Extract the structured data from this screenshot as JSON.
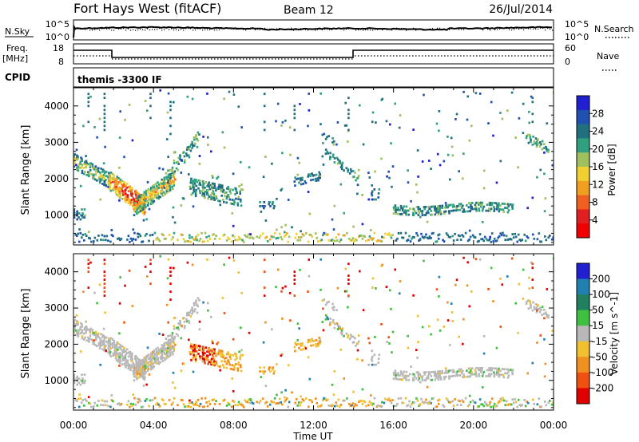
{
  "header": {
    "title": "Fort Hays West (fitACF)",
    "beam": "Beam 12",
    "date": "26/Jul/2014"
  },
  "top_panels": {
    "nsky_label": "N.Sky",
    "nsky_ticks": [
      "10^5",
      "10^0"
    ],
    "nsearch_label": "N.Search",
    "nsearch_ticks": [
      "10^5",
      "10^0"
    ],
    "freq_label": "Freq.",
    "freq_unit": "[MHz]",
    "freq_ticks": [
      "18",
      "8"
    ],
    "nave_label": "Nave",
    "nave_ticks": [
      "60",
      "0"
    ],
    "cpid_label": "CPID",
    "cpid_value": "themis -3300 IF"
  },
  "chart_data": [
    {
      "type": "heatmap",
      "name": "power",
      "ylabel": "Slant Range [km]",
      "yticks": [
        "4000",
        "3000",
        "2000",
        "1000"
      ],
      "xticks": [
        "00:00",
        "04:00",
        "08:00",
        "12:00",
        "16:00",
        "20:00",
        "00:00"
      ],
      "xlim_hours": [
        0,
        24
      ],
      "ylim_km": [
        180,
        4500
      ],
      "colorbar": {
        "label": "Power [dB]",
        "ticks": [
          "28",
          "24",
          "20",
          "16",
          "12",
          "8",
          "4"
        ],
        "colors": [
          "#2020d0",
          "#2050b0",
          "#207080",
          "#30a080",
          "#a0c060",
          "#f0d030",
          "#f0a020",
          "#f06020",
          "#e02020",
          "#f00000"
        ]
      }
    },
    {
      "type": "heatmap",
      "name": "velocity",
      "ylabel": "Slant Range [km]",
      "yticks": [
        "4000",
        "3000",
        "2000",
        "1000"
      ],
      "xticks": [
        "00:00",
        "04:00",
        "08:00",
        "12:00",
        "16:00",
        "20:00",
        "00:00"
      ],
      "xlim_hours": [
        0,
        24
      ],
      "ylim_km": [
        180,
        4500
      ],
      "colorbar": {
        "label": "Velocity [m s^-1]",
        "ticks": [
          "200",
          "100",
          "50",
          "15",
          "-15",
          "-50",
          "-100",
          "-200"
        ],
        "colors": [
          "#2020d0",
          "#2080b0",
          "#208060",
          "#40c040",
          "#b8b8b8",
          "#f0c030",
          "#f09020",
          "#f05010",
          "#e00000"
        ]
      }
    }
  ],
  "xaxis": {
    "label": "Time UT"
  }
}
